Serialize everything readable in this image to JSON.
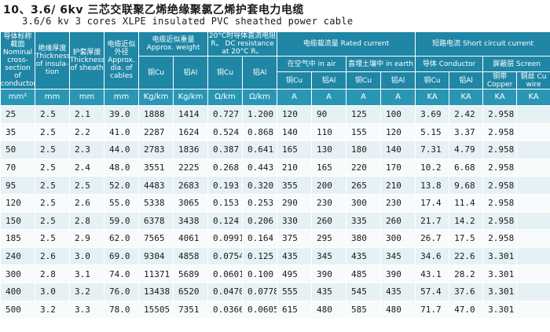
{
  "title": {
    "line1": "10、3.6/ 6kv  三芯交联聚乙烯绝缘聚氯乙烯护套电力电缆",
    "line2": "3.6/6 kv 3 cores XLPE insulated  PVC sheathed power cable"
  },
  "headers": {
    "nominal": "导体标称截面 Nominal cross-section of conductors",
    "insulation": "绝缘厚度 Thickness of insula-tion",
    "sheath": "护套厚度 Thickness of sheath",
    "diameter": "电缆近似外径 Approx. dia. of cables",
    "weight": "电缆近似重量 Approx. weight",
    "resistance": "20°C时导体直流电阻R。 DC resistance at 20°C R。",
    "rated": "电缆载流量 Rated current",
    "in_air": "在空气中 in air",
    "in_earth": "直埋土壤中 in earth",
    "short": "短路电流 Short circuit current",
    "conductor": "导体 Conductor",
    "screen": "屏蔽层 Screen",
    "copper_tape": "铜带 Copper",
    "copper_wire": "铜丝 Cu wire",
    "cu": "铜Cu",
    "al": "铝Al",
    "cu2": "铜Cu",
    "al2": "铝Al",
    "cu3": "铜Cu",
    "al3": "铝Al",
    "cu4": "铜Cu",
    "al4": "铝Al",
    "cu5": "铜Cu",
    "al5": "铝Al"
  },
  "units": [
    "mm²",
    "mm",
    "mm",
    "mm",
    "Kg/km",
    "Kg/km",
    "Ω/km",
    "Ω/km",
    "A",
    "A",
    "A",
    "A",
    "KA",
    "KA",
    "KA",
    "KA"
  ],
  "rows": [
    [
      "25",
      "2.5",
      "2.1",
      "39.0",
      "1888",
      "1414",
      "0.727",
      "1.200",
      "120",
      "90",
      "125",
      "100",
      "3.69",
      "2.42",
      "2.958",
      ""
    ],
    [
      "35",
      "2.5",
      "2.2",
      "41.0",
      "2287",
      "1624",
      "0.524",
      "0.868",
      "140",
      "110",
      "155",
      "120",
      "5.15",
      "3.37",
      "2.958",
      ""
    ],
    [
      "50",
      "2.5",
      "2.3",
      "44.0",
      "2783",
      "1836",
      "0.387",
      "0.641",
      "165",
      "130",
      "180",
      "140",
      "7.31",
      "4.79",
      "2.958",
      ""
    ],
    [
      "70",
      "2.5",
      "2.4",
      "48.0",
      "3551",
      "2225",
      "0.268",
      "0.443",
      "210",
      "165",
      "220",
      "170",
      "10.2",
      "6.68",
      "2.958",
      ""
    ],
    [
      "95",
      "2.5",
      "2.5",
      "52.0",
      "4483",
      "2683",
      "0.193",
      "0.320",
      "355",
      "200",
      "265",
      "210",
      "13.8",
      "9.68",
      "2.958",
      ""
    ],
    [
      "120",
      "2.5",
      "2.6",
      "55.0",
      "5338",
      "3065",
      "0.153",
      "0.253",
      "290",
      "230",
      "300",
      "230",
      "17.4",
      "11.4",
      "2.958",
      ""
    ],
    [
      "150",
      "2.5",
      "2.8",
      "59.0",
      "6378",
      "3438",
      "0.124",
      "0.206",
      "330",
      "260",
      "335",
      "260",
      "21.7",
      "14.2",
      "2.958",
      ""
    ],
    [
      "185",
      "2.5",
      "2.9",
      "62.0",
      "7565",
      "4061",
      "0.0991",
      "0.164",
      "375",
      "295",
      "380",
      "300",
      "26.7",
      "17.5",
      "2.958",
      ""
    ],
    [
      "240",
      "2.6",
      "3.0",
      "69.0",
      "9304",
      "4858",
      "0.0754",
      "0.125",
      "435",
      "345",
      "435",
      "345",
      "34.6",
      "22.6",
      "3.301",
      ""
    ],
    [
      "300",
      "2.8",
      "3.1",
      "74.0",
      "11371",
      "5689",
      "0.0601",
      "0.100",
      "495",
      "390",
      "485",
      "390",
      "43.1",
      "28.2",
      "3.301",
      ""
    ],
    [
      "400",
      "3.0",
      "3.2",
      "76.0",
      "13438",
      "6520",
      "0.0470",
      "0.0778",
      "555",
      "435",
      "545",
      "435",
      "57.4",
      "37.6",
      "3.301",
      ""
    ],
    [
      "500",
      "3.2",
      "3.3",
      "78.0",
      "15505",
      "7351",
      "0.0366",
      "0.0605",
      "615",
      "480",
      "585",
      "480",
      "71.7",
      "47.0",
      "3.301",
      ""
    ]
  ]
}
